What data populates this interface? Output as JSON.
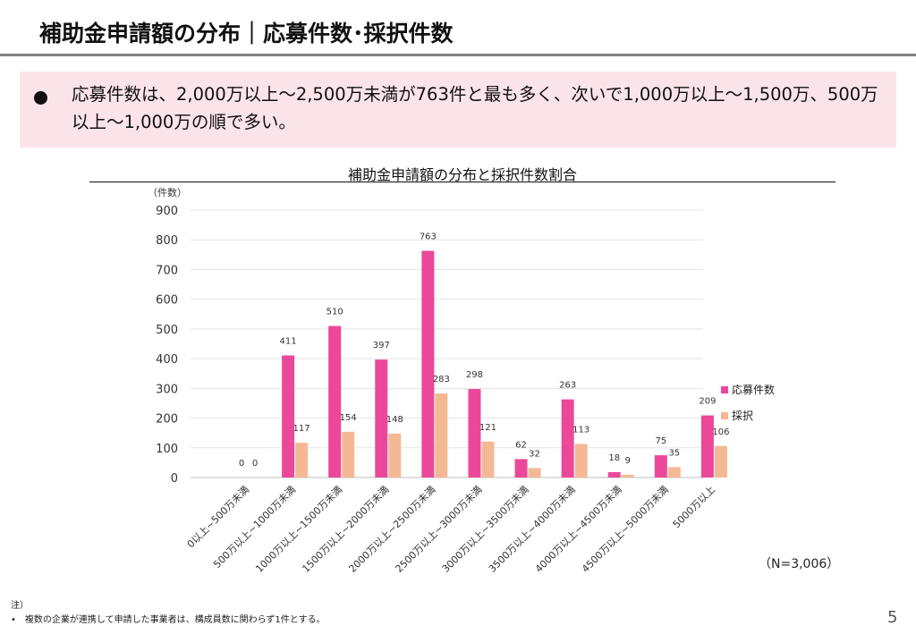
{
  "slide": {
    "title": "補助金申請額の分布｜応募件数･採択件数",
    "summary": "応募件数は、2,000万以上～2,500万未満が763件と最も多く、次いで1,000万以上～1,500万、500万以上～1,000万の順で多い。",
    "n_label": "（N=3,006）",
    "note_head": "注）",
    "note": "•　複数の企業が連携して申請した事業者は、構成員数に関わらず1件とする。",
    "page": "5"
  },
  "chart_data": {
    "type": "bar",
    "title": "補助金申請額の分布と採択件数割合",
    "unit_label": "（件数）",
    "categories": [
      "0以上~500万未満",
      "500万以上~1000万未満",
      "1000万以上~1500万未満",
      "1500万以上~2000万未満",
      "2000万以上~2500万未満",
      "2500万以上~3000万未満",
      "3000万以上~3500万未満",
      "3500万以上~4000万未満",
      "4000万以上~4500万未満",
      "4500万以上~5000万未満",
      "5000万以上"
    ],
    "series": [
      {
        "name": "応募件数",
        "color": "#ec4899",
        "values": [
          0,
          411,
          510,
          397,
          763,
          298,
          62,
          263,
          18,
          75,
          209
        ]
      },
      {
        "name": "採択",
        "color": "#f5b895",
        "values": [
          0,
          117,
          154,
          148,
          283,
          121,
          32,
          113,
          9,
          35,
          106
        ]
      }
    ],
    "ylim": [
      0,
      900
    ],
    "yticks": [
      0,
      100,
      200,
      300,
      400,
      500,
      600,
      700,
      800,
      900
    ],
    "grid": true,
    "legend_position": "right"
  }
}
